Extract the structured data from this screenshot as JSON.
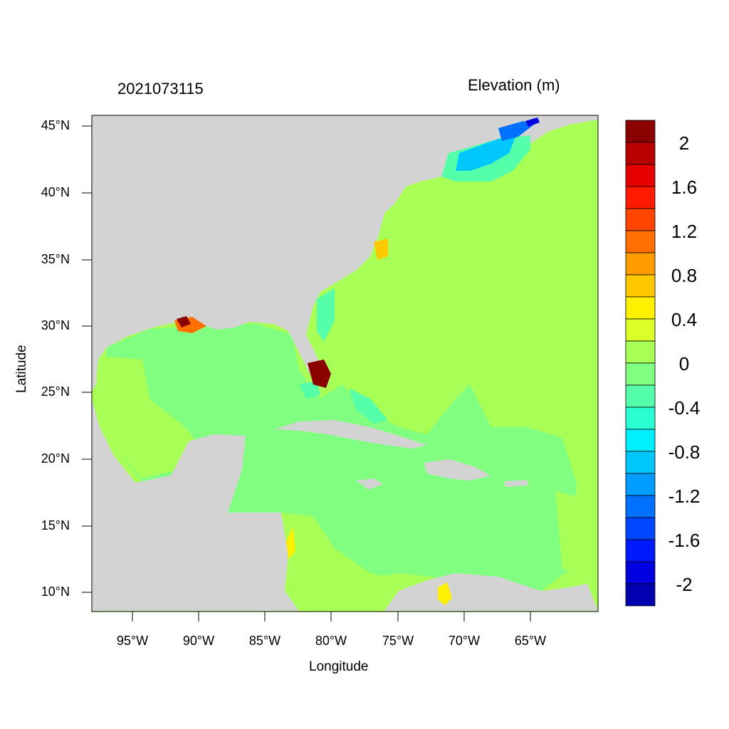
{
  "header": {
    "datetime": "2021073115",
    "variable": "Elevation (m)"
  },
  "axes": {
    "xlabel": "Longitude",
    "ylabel": "Latitude",
    "xticks": [
      "95°W",
      "90°W",
      "85°W",
      "80°W",
      "75°W",
      "70°W",
      "65°W"
    ],
    "yticks": [
      "45°N",
      "40°N",
      "35°N",
      "30°N",
      "25°N",
      "20°N",
      "15°N",
      "10°N"
    ]
  },
  "colorbar": {
    "labels": [
      "2",
      "1.6",
      "1.2",
      "0.8",
      "0.4",
      "0",
      "-0.4",
      "-0.8",
      "-1.2",
      "-1.6",
      "-2"
    ],
    "colors": [
      "#8b0000",
      "#b80000",
      "#e60000",
      "#ff1a00",
      "#ff4500",
      "#ff7000",
      "#ff9c00",
      "#ffc800",
      "#fff000",
      "#dcff2a",
      "#a8ff55",
      "#80ff80",
      "#55ffaa",
      "#2affd4",
      "#00f0ff",
      "#00c8ff",
      "#009cff",
      "#0070ff",
      "#0045ff",
      "#001aff",
      "#0000e0",
      "#0000b0"
    ]
  },
  "colors": {
    "land": "#d3d3d3",
    "ocean_atlantic": "#a8ff55",
    "ocean_gulf_caribbean": "#80ff80"
  }
}
